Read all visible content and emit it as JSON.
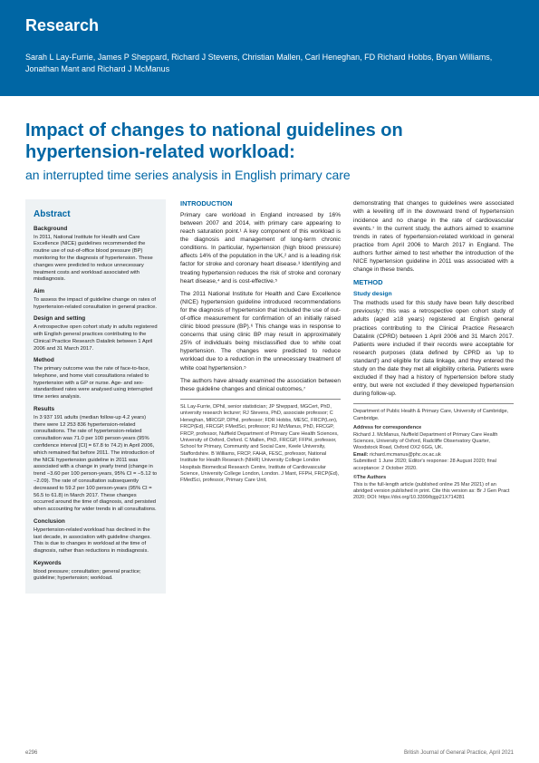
{
  "header": {
    "label": "Research",
    "authors": "Sarah L Lay-Furrie, James P Sheppard, Richard J Stevens, Christian Mallen, Carl Heneghan, FD Richard Hobbs, Bryan Williams, Jonathan Mant and Richard J McManus"
  },
  "title": {
    "main": "Impact of changes to national guidelines on hypertension-related workload:",
    "sub": "an interrupted time series analysis in English primary care"
  },
  "abstract": {
    "heading": "Abstract",
    "background_h": "Background",
    "background": "In 2011, National Institute for Health and Care Excellence (NICE) guidelines recommended the routine use of out-of-office blood pressure (BP) monitoring for the diagnosis of hypertension. These changes were predicted to reduce unnecessary treatment costs and workload associated with misdiagnosis.",
    "aim_h": "Aim",
    "aim": "To assess the impact of guideline change on rates of hypertension-related consultation in general practice.",
    "design_h": "Design and setting",
    "design": "A retrospective open cohort study in adults registered with English general practices contributing to the Clinical Practice Research Datalink between 1 April 2006 and 31 March 2017.",
    "method_h": "Method",
    "method": "The primary outcome was the rate of face-to-face, telephone, and home visit consultations related to hypertension with a GP or nurse. Age- and sex-standardised rates were analysed using interrupted time series analysis.",
    "results_h": "Results",
    "results": "In 3 937 191 adults (median follow-up 4.2 years) there were 12 253 836 hypertension-related consultations. The rate of hypertension-related consultation was 71.0 per 100 person-years (95% confidence interval [CI] = 67.8 to 74.2) in April 2006, which remained flat before 2011. The introduction of the NICE hypertension guideline in 2011 was associated with a change in yearly trend (change in trend −3.60 per 100 person-years, 95% CI = −5.12 to −2.09). The rate of consultation subsequently decreased to 59.2 per 100 person-years (95% CI = 56.5 to 61.8) in March 2017. These changes occurred around the time of diagnosis, and persisted when accounting for wider trends in all consultations.",
    "conclusion_h": "Conclusion",
    "conclusion": "Hypertension-related workload has declined in the last decade, in association with guideline changes. This is due to changes in workload at the time of diagnosis, rather than reductions in misdiagnosis.",
    "keywords_h": "Keywords",
    "keywords": "blood pressure; consultation; general practice; guideline; hypertension; workload."
  },
  "body": {
    "intro_h": "INTRODUCTION",
    "intro1": "Primary care workload in England increased by 16% between 2007 and 2014, with primary care appearing to reach saturation point.¹ A key component of this workload is the diagnosis and management of long-term chronic conditions. In particular, hypertension (high blood pressure) affects 14% of the population in the UK,² and is a leading risk factor for stroke and coronary heart disease.³ Identifying and treating hypertension reduces the risk of stroke and coronary heart disease,⁴ and is cost-effective.⁵",
    "intro2": "The 2011 National Institute for Health and Care Excellence (NICE) hypertension guideline introduced recommendations for the diagnosis of hypertension that included the use of out-of-office measurement for confirmation of an initially raised clinic blood pressure (BP).⁶ This change was in response to concerns that using clinic BP may result in approximately 25% of individuals being misclassified due to white coat hypertension. The changes were predicted to reduce workload due to a reduction in the unnecessary treatment of white coat hypertension.⁵",
    "intro3": "The authors have already examined the association between these guideline changes and clinical outcomes,⁷",
    "intro4": "demonstrating that changes to guidelines were associated with a levelling off in the downward trend of hypertension incidence and no change in the rate of cardiovascular events.⁷ In the current study, the authors aimed to examine trends in rates of hypertension-related workload in general practice from April 2006 to March 2017 in England. The authors further aimed to test whether the introduction of the NICE hypertension guideline in 2011 was associated with a change in these trends.",
    "method_h": "METHOD",
    "study_h": "Study design",
    "method1": "The methods used for this study have been fully described previously;⁷ this was a retrospective open cohort study of adults (aged ≥18 years) registered at English general practices contributing to the Clinical Practice Research Datalink (CPRD) between 1 April 2006 and 31 March 2017. Patients were included if their records were acceptable for research purposes (data defined by CPRD as 'up to standard') and eligible for data linkage, and they entered the study on the date they met all eligibility criteria. Patients were excluded if they had a history of hypertension before study entry, but were not excluded if they developed hypertension during follow-up."
  },
  "affil": {
    "col1": "SL Lay-Furrie, DPhil, senior statistician; JP Sheppard, MGCert, PhD, university research lecturer; RJ Stevens, PhD, associate professor; C Heneghan, MRCGP, DPhil, professor; FDR Hobbs, MESC, FRCP(Lon), FRCP(Ed), FRCGP, FMedSci, professor; RJ McManus, PhD, FRCGP, FRCP, professor, Nuffield Department of Primary Care Health Sciences, University of Oxford, Oxford. C Mallen, PhD, FRCGP, FFPH, professor, School for Primary, Community and Social Care, Keele University, Staffordshire. B Williams, FRCP, FAHA, FESC, professor, National Institute for Health Research (NIHR) University College London Hospitals Biomedical Research Centre, Institute of Cardiovascular Science, University College London, London. J Mant, FFPH, FRCP(Ed), FMedSci, professor, Primary Care Unit,",
    "col2_top": "Department of Public Health & Primary Care, University of Cambridge, Cambridge.",
    "addr_h": "Address for correspondence",
    "addr": "Richard J. McManus, Nuffield Department of Primary Care Health Sciences, University of Oxford, Radcliffe Observatory Quarter, Woodstock Road, Oxford OX2 6GG, UK.",
    "email_h": "Email:",
    "email": "richard.mcmanus@phc.ox.ac.uk",
    "submitted": "Submitted: 1 June 2020; Editor's response: 28 August 2020; final acceptance: 2 October 2020.",
    "copyright": "©The Authors",
    "note": "This is the full-length article (published online 25 Mar 2021) of an abridged version published in print. Cite this version as: Br J Gen Pract 2020; DOI: https://doi.org/10.3399/bjgp21X714281"
  },
  "footer": {
    "left": "e296",
    "right": "British Journal of General Practice, April 2021"
  },
  "colors": {
    "brand": "#0066a4",
    "abstract_bg": "#eef2f4",
    "text": "#222222",
    "footer_text": "#666666"
  }
}
